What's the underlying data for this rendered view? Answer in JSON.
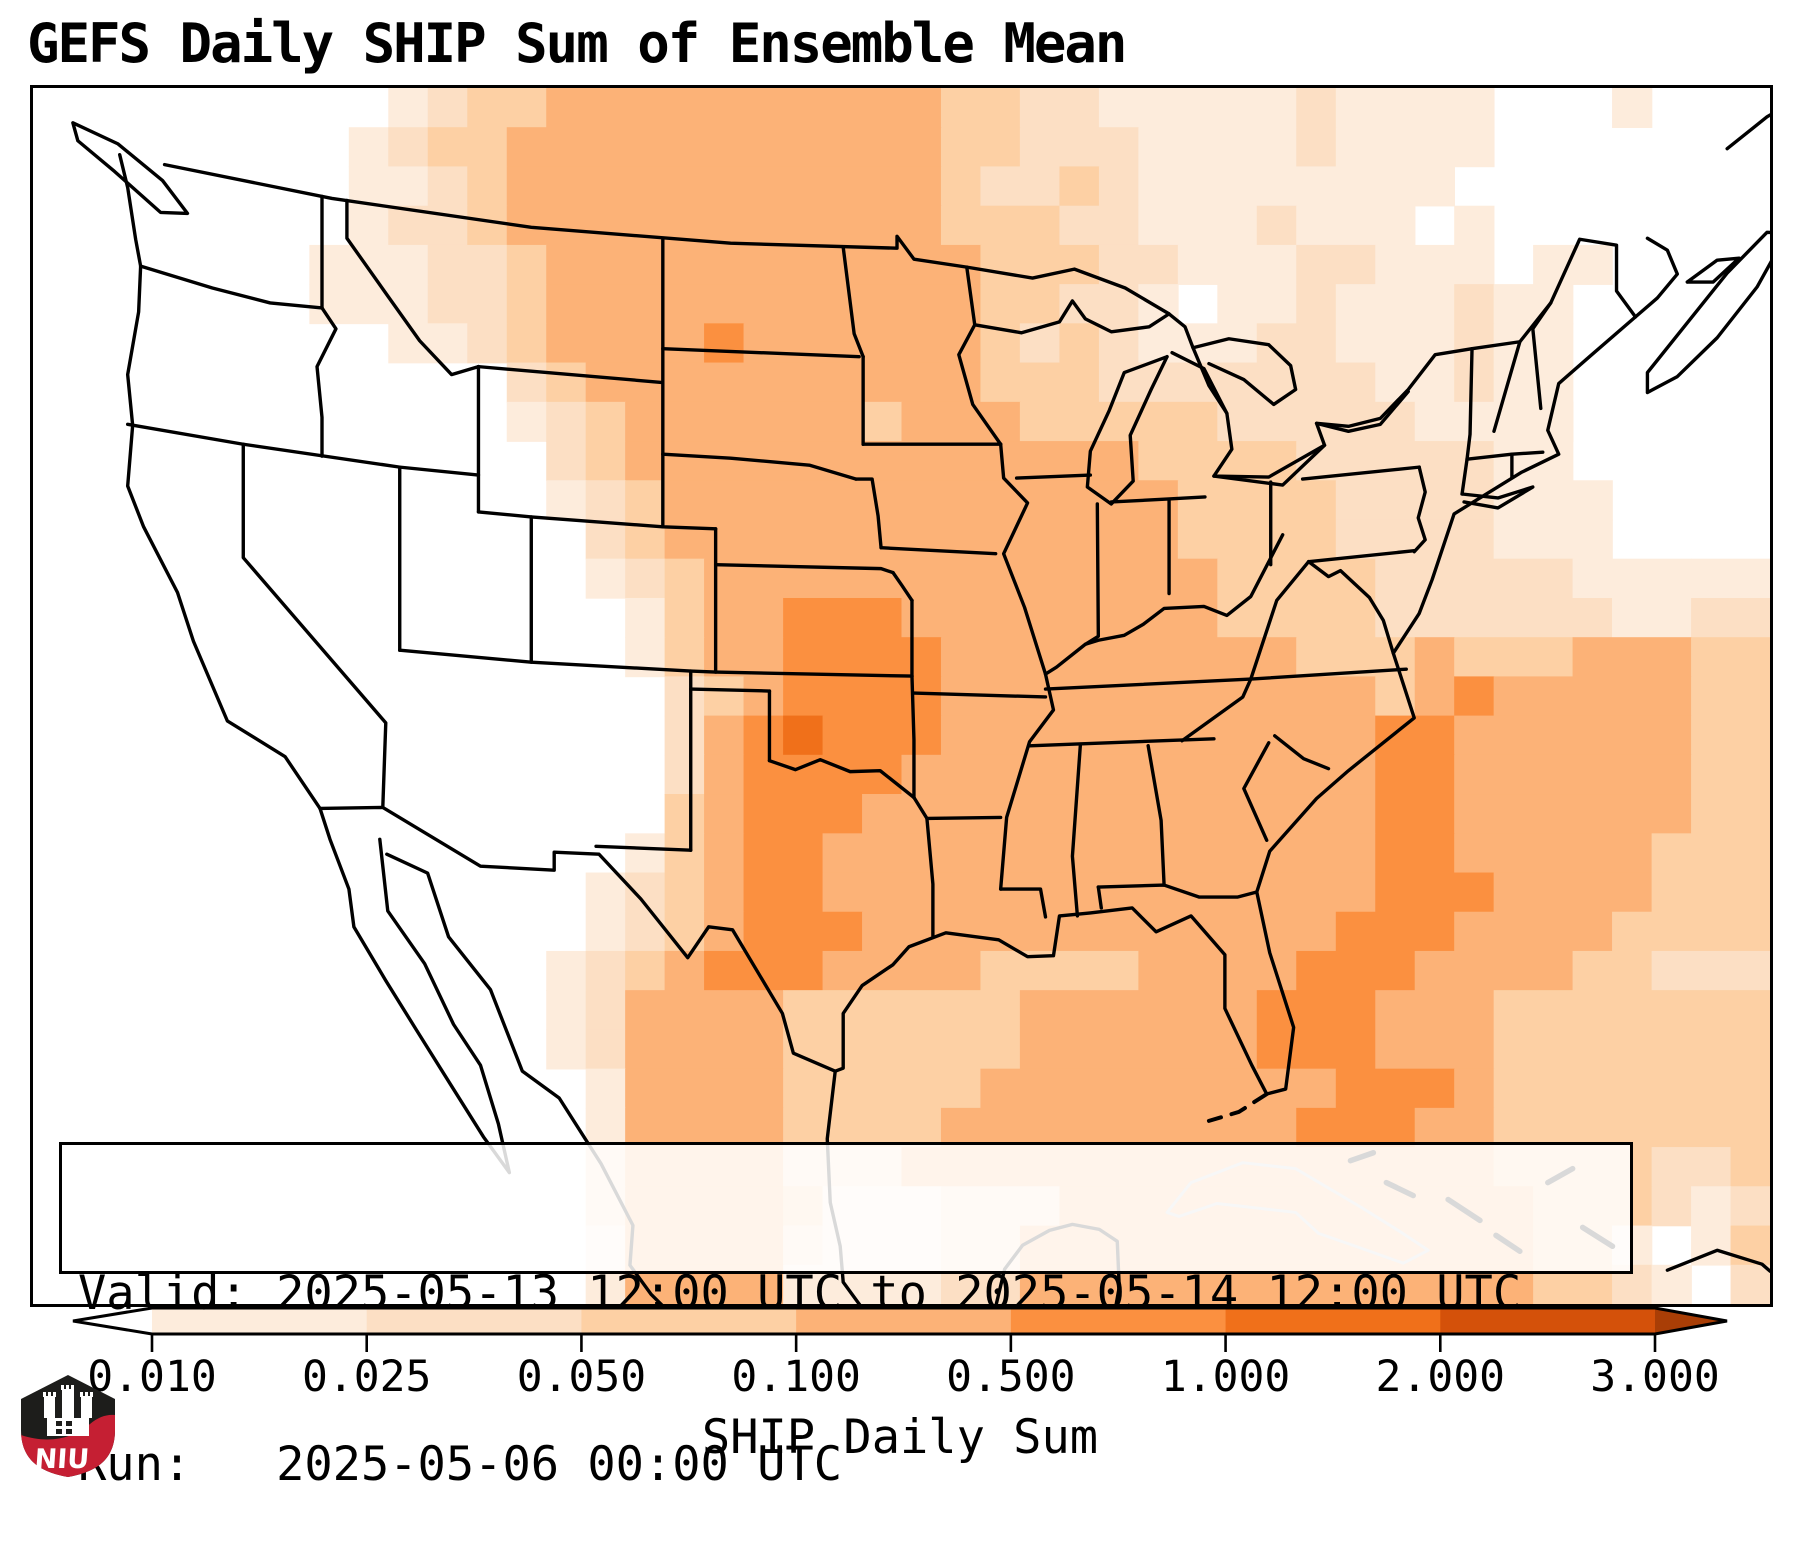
{
  "title": "GEFS Daily SHIP Sum of Ensemble Mean",
  "info_box": {
    "line1": "Valid: 2025-05-13 12:00 UTC to 2025-05-14 12:00 UTC",
    "line2": "Run:   2025-05-06 00:00 UTC"
  },
  "colorbar": {
    "label": "SHIP Daily Sum",
    "ticks": [
      "0.010",
      "0.025",
      "0.050",
      "0.100",
      "0.500",
      "1.000",
      "2.000",
      "3.000"
    ],
    "segment_colors": [
      "#fdecdc",
      "#fcdfc4",
      "#fdd0a4",
      "#fcb277",
      "#fb9040",
      "#f0701a",
      "#d4510a"
    ],
    "under_color": "#ffffff",
    "over_color": "#a93e06",
    "outline_color": "#000000"
  },
  "logo": {
    "text": "NIU",
    "shield_dark": "#1d1d1b",
    "shield_red": "#c51f33",
    "castle_color": "#ffffff"
  },
  "chart_data": {
    "type": "heatmap",
    "title": "GEFS Daily SHIP Sum of Ensemble Mean",
    "valid": "2025-05-13 12:00 UTC to 2025-05-14 12:00 UTC",
    "run": "2025-05-06 00:00 UTC",
    "colorbar_label": "SHIP Daily Sum",
    "levels": [
      0.01,
      0.025,
      0.05,
      0.1,
      0.5,
      1.0,
      2.0,
      3.0
    ],
    "palette": [
      "#ffffff",
      "#fdecdc",
      "#fcdfc4",
      "#fdd0a4",
      "#fcb277",
      "#fb9040",
      "#f0701a",
      "#d4510a"
    ],
    "legend": "cell level index 0-7 maps to palette; 0 = < 0.010, 4 = 0.100-0.500, 7 = 2.000-3.000",
    "grid": {
      "cols": 44,
      "rows": 31,
      "rle_rows": [
        [
          [
            9,
            0
          ],
          [
            1,
            1
          ],
          [
            1,
            2
          ],
          [
            2,
            3
          ],
          [
            10,
            4
          ],
          [
            2,
            3
          ],
          [
            2,
            2
          ],
          [
            5,
            1
          ],
          [
            1,
            2
          ],
          [
            4,
            1
          ],
          [
            3,
            0
          ],
          [
            1,
            1
          ],
          [
            3,
            0
          ]
        ],
        [
          [
            8,
            0
          ],
          [
            1,
            1
          ],
          [
            1,
            2
          ],
          [
            2,
            3
          ],
          [
            11,
            4
          ],
          [
            2,
            3
          ],
          [
            3,
            2
          ],
          [
            4,
            1
          ],
          [
            1,
            2
          ],
          [
            4,
            1
          ],
          [
            7,
            0
          ]
        ],
        [
          [
            8,
            0
          ],
          [
            2,
            1
          ],
          [
            1,
            2
          ],
          [
            1,
            3
          ],
          [
            11,
            4
          ],
          [
            1,
            3
          ],
          [
            2,
            2
          ],
          [
            1,
            3
          ],
          [
            1,
            2
          ],
          [
            8,
            1
          ],
          [
            8,
            0
          ]
        ],
        [
          [
            8,
            0
          ],
          [
            1,
            1
          ],
          [
            2,
            2
          ],
          [
            1,
            3
          ],
          [
            11,
            4
          ],
          [
            3,
            3
          ],
          [
            2,
            2
          ],
          [
            3,
            1
          ],
          [
            1,
            2
          ],
          [
            3,
            1
          ],
          [
            1,
            0
          ],
          [
            1,
            1
          ],
          [
            7,
            0
          ]
        ],
        [
          [
            7,
            0
          ],
          [
            3,
            1
          ],
          [
            2,
            2
          ],
          [
            1,
            3
          ],
          [
            11,
            4
          ],
          [
            2,
            3
          ],
          [
            1,
            3
          ],
          [
            2,
            2
          ],
          [
            3,
            1
          ],
          [
            2,
            2
          ],
          [
            3,
            1
          ],
          [
            1,
            0
          ],
          [
            2,
            1
          ],
          [
            4,
            0
          ]
        ],
        [
          [
            7,
            0
          ],
          [
            3,
            1
          ],
          [
            2,
            2
          ],
          [
            1,
            3
          ],
          [
            11,
            4
          ],
          [
            2,
            3
          ],
          [
            2,
            2
          ],
          [
            1,
            1
          ],
          [
            1,
            0
          ],
          [
            2,
            1
          ],
          [
            1,
            2
          ],
          [
            3,
            1
          ],
          [
            1,
            2
          ],
          [
            2,
            1
          ],
          [
            5,
            0
          ]
        ],
        [
          [
            9,
            0
          ],
          [
            2,
            1
          ],
          [
            1,
            2
          ],
          [
            1,
            3
          ],
          [
            4,
            4
          ],
          [
            1,
            5
          ],
          [
            6,
            4
          ],
          [
            1,
            3
          ],
          [
            1,
            2
          ],
          [
            1,
            3
          ],
          [
            1,
            2
          ],
          [
            3,
            1
          ],
          [
            2,
            2
          ],
          [
            3,
            1
          ],
          [
            1,
            2
          ],
          [
            2,
            1
          ],
          [
            5,
            0
          ]
        ],
        [
          [
            12,
            0
          ],
          [
            1,
            2
          ],
          [
            1,
            3
          ],
          [
            10,
            4
          ],
          [
            3,
            3
          ],
          [
            7,
            2
          ],
          [
            2,
            1
          ],
          [
            1,
            2
          ],
          [
            2,
            1
          ],
          [
            5,
            0
          ]
        ],
        [
          [
            12,
            0
          ],
          [
            1,
            1
          ],
          [
            1,
            2
          ],
          [
            1,
            3
          ],
          [
            6,
            4
          ],
          [
            1,
            3
          ],
          [
            3,
            4
          ],
          [
            5,
            3
          ],
          [
            5,
            2
          ],
          [
            4,
            1
          ],
          [
            5,
            0
          ]
        ],
        [
          [
            13,
            0
          ],
          [
            1,
            2
          ],
          [
            1,
            3
          ],
          [
            13,
            4
          ],
          [
            4,
            3
          ],
          [
            5,
            2
          ],
          [
            2,
            1
          ],
          [
            5,
            0
          ]
        ],
        [
          [
            13,
            0
          ],
          [
            1,
            1
          ],
          [
            1,
            2
          ],
          [
            1,
            3
          ],
          [
            13,
            4
          ],
          [
            4,
            3
          ],
          [
            4,
            2
          ],
          [
            3,
            1
          ],
          [
            4,
            0
          ]
        ],
        [
          [
            14,
            0
          ],
          [
            1,
            2
          ],
          [
            1,
            3
          ],
          [
            13,
            4
          ],
          [
            4,
            3
          ],
          [
            4,
            2
          ],
          [
            3,
            1
          ],
          [
            4,
            0
          ]
        ],
        [
          [
            14,
            0
          ],
          [
            1,
            1
          ],
          [
            1,
            2
          ],
          [
            1,
            3
          ],
          [
            13,
            4
          ],
          [
            4,
            3
          ],
          [
            5,
            2
          ],
          [
            3,
            1
          ],
          [
            2,
            1
          ]
        ],
        [
          [
            15,
            0
          ],
          [
            1,
            1
          ],
          [
            1,
            3
          ],
          [
            2,
            4
          ],
          [
            3,
            5
          ],
          [
            8,
            4
          ],
          [
            4,
            3
          ],
          [
            6,
            2
          ],
          [
            2,
            1
          ],
          [
            2,
            2
          ]
        ],
        [
          [
            15,
            0
          ],
          [
            1,
            1
          ],
          [
            1,
            3
          ],
          [
            2,
            4
          ],
          [
            4,
            5
          ],
          [
            9,
            4
          ],
          [
            3,
            3
          ],
          [
            1,
            4
          ],
          [
            3,
            3
          ],
          [
            3,
            4
          ],
          [
            2,
            3
          ]
        ],
        [
          [
            16,
            0
          ],
          [
            1,
            2
          ],
          [
            1,
            3
          ],
          [
            1,
            4
          ],
          [
            4,
            5
          ],
          [
            11,
            4
          ],
          [
            1,
            3
          ],
          [
            1,
            4
          ],
          [
            1,
            5
          ],
          [
            5,
            4
          ],
          [
            2,
            3
          ]
        ],
        [
          [
            16,
            0
          ],
          [
            1,
            2
          ],
          [
            1,
            4
          ],
          [
            1,
            5
          ],
          [
            1,
            6
          ],
          [
            3,
            5
          ],
          [
            11,
            4
          ],
          [
            2,
            5
          ],
          [
            6,
            4
          ],
          [
            2,
            3
          ]
        ],
        [
          [
            16,
            0
          ],
          [
            1,
            2
          ],
          [
            1,
            4
          ],
          [
            4,
            5
          ],
          [
            12,
            4
          ],
          [
            2,
            5
          ],
          [
            6,
            4
          ],
          [
            2,
            3
          ]
        ],
        [
          [
            16,
            0
          ],
          [
            1,
            3
          ],
          [
            1,
            4
          ],
          [
            3,
            5
          ],
          [
            13,
            4
          ],
          [
            2,
            5
          ],
          [
            6,
            4
          ],
          [
            2,
            3
          ]
        ],
        [
          [
            15,
            0
          ],
          [
            1,
            1
          ],
          [
            1,
            3
          ],
          [
            1,
            4
          ],
          [
            2,
            5
          ],
          [
            14,
            4
          ],
          [
            2,
            5
          ],
          [
            5,
            4
          ],
          [
            3,
            3
          ]
        ],
        [
          [
            14,
            0
          ],
          [
            1,
            1
          ],
          [
            1,
            2
          ],
          [
            1,
            3
          ],
          [
            1,
            4
          ],
          [
            2,
            5
          ],
          [
            14,
            4
          ],
          [
            3,
            5
          ],
          [
            4,
            4
          ],
          [
            3,
            3
          ]
        ],
        [
          [
            14,
            0
          ],
          [
            1,
            1
          ],
          [
            1,
            2
          ],
          [
            1,
            3
          ],
          [
            1,
            4
          ],
          [
            3,
            5
          ],
          [
            12,
            4
          ],
          [
            3,
            5
          ],
          [
            4,
            4
          ],
          [
            4,
            3
          ]
        ],
        [
          [
            13,
            0
          ],
          [
            1,
            1
          ],
          [
            1,
            2
          ],
          [
            1,
            3
          ],
          [
            1,
            4
          ],
          [
            3,
            5
          ],
          [
            4,
            4
          ],
          [
            4,
            3
          ],
          [
            4,
            4
          ],
          [
            3,
            5
          ],
          [
            4,
            4
          ],
          [
            2,
            3
          ],
          [
            3,
            2
          ]
        ],
        [
          [
            13,
            0
          ],
          [
            1,
            1
          ],
          [
            1,
            2
          ],
          [
            4,
            4
          ],
          [
            6,
            3
          ],
          [
            6,
            4
          ],
          [
            3,
            5
          ],
          [
            3,
            4
          ],
          [
            7,
            3
          ]
        ],
        [
          [
            13,
            0
          ],
          [
            1,
            1
          ],
          [
            1,
            2
          ],
          [
            4,
            4
          ],
          [
            6,
            3
          ],
          [
            6,
            4
          ],
          [
            3,
            5
          ],
          [
            3,
            4
          ],
          [
            7,
            3
          ]
        ],
        [
          [
            14,
            0
          ],
          [
            1,
            1
          ],
          [
            4,
            4
          ],
          [
            5,
            3
          ],
          [
            9,
            4
          ],
          [
            3,
            5
          ],
          [
            1,
            4
          ],
          [
            7,
            3
          ]
        ],
        [
          [
            14,
            0
          ],
          [
            1,
            1
          ],
          [
            4,
            4
          ],
          [
            4,
            3
          ],
          [
            9,
            4
          ],
          [
            3,
            5
          ],
          [
            2,
            4
          ],
          [
            7,
            3
          ]
        ],
        [
          [
            14,
            0
          ],
          [
            1,
            2
          ],
          [
            4,
            4
          ],
          [
            3,
            2
          ],
          [
            15,
            4
          ],
          [
            4,
            3
          ],
          [
            2,
            2
          ],
          [
            1,
            3
          ]
        ],
        [
          [
            14,
            0
          ],
          [
            1,
            2
          ],
          [
            4,
            4
          ],
          [
            1,
            3
          ],
          [
            3,
            1
          ],
          [
            3,
            2
          ],
          [
            12,
            4
          ],
          [
            3,
            3
          ],
          [
            1,
            2
          ],
          [
            1,
            1
          ],
          [
            1,
            2
          ]
        ],
        [
          [
            14,
            0
          ],
          [
            1,
            1
          ],
          [
            4,
            4
          ],
          [
            1,
            2
          ],
          [
            3,
            1
          ],
          [
            2,
            2
          ],
          [
            13,
            4
          ],
          [
            2,
            3
          ],
          [
            1,
            1
          ],
          [
            1,
            0
          ],
          [
            1,
            1
          ],
          [
            1,
            3
          ]
        ],
        [
          [
            14,
            0
          ],
          [
            1,
            1
          ],
          [
            4,
            4
          ],
          [
            4,
            1
          ],
          [
            2,
            2
          ],
          [
            13,
            4
          ],
          [
            2,
            3
          ],
          [
            1,
            2
          ],
          [
            1,
            1
          ],
          [
            1,
            0
          ],
          [
            1,
            2
          ]
        ]
      ]
    }
  }
}
